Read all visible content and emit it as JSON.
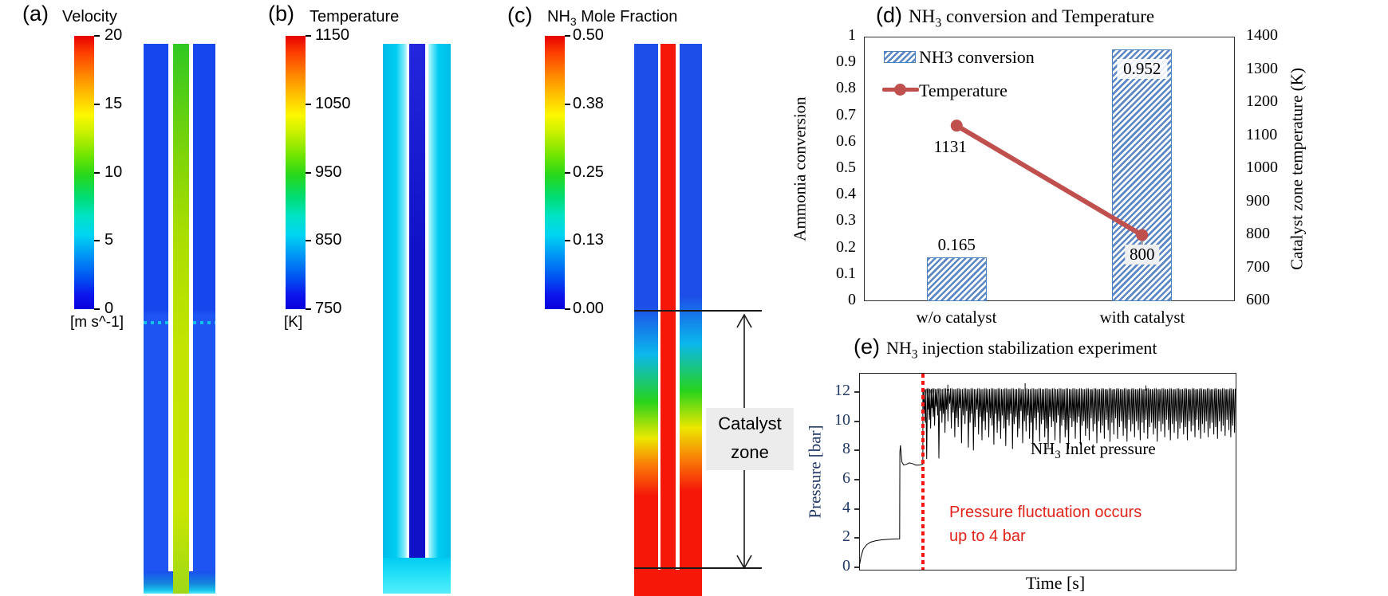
{
  "panels": {
    "a": {
      "label": "(a)",
      "title": "Velocity",
      "unit": "[m s^-1]",
      "colorbar_ticks": [
        "20",
        "15",
        "10",
        "5",
        "0"
      ]
    },
    "b": {
      "label": "(b)",
      "title": "Temperature",
      "unit": "[K]",
      "colorbar_ticks": [
        "1150",
        "1050",
        "950",
        "850",
        "750"
      ]
    },
    "c": {
      "label": "(c)",
      "title_pre": "NH",
      "title_sub": "3",
      "title_rest": " Mole Fraction",
      "colorbar_ticks": [
        "0.50",
        "0.38",
        "0.25",
        "0.13",
        "0.00"
      ],
      "catalyst_line1": "Catalyst",
      "catalyst_line2": "zone"
    },
    "d": {
      "label": "(d)",
      "title_pre": "NH",
      "title_sub": "3",
      "title_rest": " conversion and Temperature",
      "legend_bar": "NH3 conversion",
      "legend_line": "Temperature",
      "left_axis_label": "Ammonia conversion",
      "right_axis_label": "Catalyst zone temperature  (K)",
      "categories": [
        "w/o catalyst",
        "with catalyst"
      ]
    },
    "e": {
      "label": "(e)",
      "title_pre": "NH",
      "title_sub": "3",
      "title_rest": " injection stabilization experiment",
      "ylabel": "Pressure [bar]",
      "xlabel": "Time [s]",
      "series_pre": "NH",
      "series_sub": "3",
      "series_rest": " Inlet pressure",
      "annotation_line1": "Pressure fluctuation occurs",
      "annotation_line2": "up to 4 bar"
    }
  },
  "contours": {
    "a_desc": "velocity contour: blue annulus, green-yellow core jet",
    "b_desc": "temperature contour: cyan annulus, dark blue core",
    "c_desc": "NH3 mole fraction contour: blue-to-red annulus along catalyst zone, red core"
  },
  "chart_data": [
    {
      "panel": "d",
      "type": "bar",
      "title": "NH3 conversion and Temperature",
      "categories": [
        "w/o catalyst",
        "with catalyst"
      ],
      "series": [
        {
          "name": "NH3 conversion",
          "type": "bar",
          "axis": "left",
          "values": [
            0.165,
            0.952
          ]
        },
        {
          "name": "Temperature",
          "type": "line",
          "axis": "right",
          "values": [
            1131,
            800
          ]
        }
      ],
      "bar_labels": [
        "0.165",
        "0.952"
      ],
      "line_labels": [
        "1131",
        "800"
      ],
      "left_axis": {
        "label": "Ammonia conversion",
        "min": 0,
        "max": 1,
        "tick_step": 0.1
      },
      "right_axis": {
        "label": "Catalyst zone temperature  (K)",
        "min": 600,
        "max": 1400,
        "tick_step": 100
      },
      "legend_position": "top-left",
      "colors": {
        "bar": "#5b87c5",
        "bar_border": "#4f81bd",
        "line": "#c0504d"
      }
    },
    {
      "panel": "e",
      "type": "line",
      "title": "NH3 injection stabilization experiment",
      "xlabel": "Time [s]",
      "ylabel": "Pressure [bar]",
      "series_label": "NH3 Inlet pressure",
      "annotation": "Pressure fluctuation occurs up to 4 bar",
      "x_range": [
        0,
        100
      ],
      "ylim": [
        0,
        13
      ],
      "yticks": [
        0,
        2,
        4,
        6,
        8,
        10,
        12
      ],
      "red_dotted_line_x": 16.9,
      "plateau": 12.15,
      "pre_points": [
        [
          0,
          0
        ],
        [
          0.5,
          0.75
        ],
        [
          1.1,
          1.25
        ],
        [
          2,
          1.55
        ],
        [
          3,
          1.72
        ],
        [
          4.4,
          1.82
        ],
        [
          6,
          1.88
        ],
        [
          8,
          1.92
        ],
        [
          9.5,
          1.94
        ],
        [
          10.75,
          1.95
        ],
        [
          10.8,
          7.9
        ],
        [
          10.95,
          8.35
        ],
        [
          11.15,
          7.75
        ],
        [
          11.35,
          7.2
        ],
        [
          11.8,
          7.0
        ],
        [
          12.5,
          7.05
        ],
        [
          13.3,
          7.15
        ],
        [
          14.1,
          7.1
        ],
        [
          15,
          7.0
        ],
        [
          16,
          7.0
        ],
        [
          16.85,
          7.05
        ]
      ],
      "up_spikes": [
        [
          23.5,
          12.5
        ],
        [
          44,
          12.6
        ],
        [
          76,
          12.45
        ]
      ],
      "spikes": [
        [
          17.2,
          10.6
        ],
        [
          17.55,
          9.9
        ],
        [
          17.9,
          7.4
        ],
        [
          18.25,
          10.8
        ],
        [
          18.6,
          10.1
        ],
        [
          18.95,
          9.5
        ],
        [
          19.3,
          10.9
        ],
        [
          19.65,
          10.3
        ],
        [
          20.0,
          9.7
        ],
        [
          20.4,
          11.0
        ],
        [
          20.8,
          10.4
        ],
        [
          21.15,
          7.45
        ],
        [
          21.55,
          10.7
        ],
        [
          21.95,
          9.9
        ],
        [
          22.35,
          10.5
        ],
        [
          22.75,
          9.2
        ],
        [
          23.15,
          10.8
        ],
        [
          23.55,
          10.0
        ],
        [
          24.0,
          11.2
        ],
        [
          24.45,
          9.5
        ],
        [
          24.9,
          10.6
        ],
        [
          25.35,
          8.9
        ],
        [
          25.8,
          10.2
        ],
        [
          26.25,
          9.6
        ],
        [
          26.7,
          10.9
        ],
        [
          27.15,
          8.5
        ],
        [
          27.6,
          10.4
        ],
        [
          28.05,
          9.8
        ],
        [
          28.5,
          10.7
        ],
        [
          28.95,
          8.2
        ],
        [
          29.4,
          9.9
        ],
        [
          29.85,
          10.5
        ],
        [
          30.3,
          8.0
        ],
        [
          30.75,
          9.6
        ],
        [
          31.2,
          10.8
        ],
        [
          31.65,
          9.1
        ],
        [
          32.1,
          10.3
        ],
        [
          32.55,
          8.7
        ],
        [
          33.0,
          10.0
        ],
        [
          33.45,
          9.4
        ],
        [
          33.9,
          10.6
        ],
        [
          34.35,
          8.9
        ],
        [
          34.8,
          10.2
        ],
        [
          35.25,
          9.7
        ],
        [
          35.7,
          8.4
        ],
        [
          36.15,
          10.5
        ],
        [
          36.6,
          9.2
        ],
        [
          37.05,
          10.0
        ],
        [
          37.5,
          8.8
        ],
        [
          37.95,
          10.4
        ],
        [
          38.4,
          9.5
        ],
        [
          38.85,
          8.3
        ],
        [
          39.3,
          10.1
        ],
        [
          39.75,
          9.7
        ],
        [
          40.2,
          10.5
        ],
        [
          40.65,
          8.1
        ],
        [
          41.1,
          9.8
        ],
        [
          41.55,
          10.3
        ],
        [
          42.0,
          8.9
        ],
        [
          42.45,
          9.5
        ],
        [
          42.9,
          10.7
        ],
        [
          43.35,
          8.5
        ],
        [
          43.8,
          10.0
        ],
        [
          44.25,
          9.3
        ],
        [
          44.7,
          10.4
        ],
        [
          45.15,
          8.8
        ],
        [
          45.6,
          9.9
        ],
        [
          46.05,
          7.9
        ],
        [
          46.5,
          10.2
        ],
        [
          46.95,
          9.4
        ],
        [
          47.4,
          10.6
        ],
        [
          47.85,
          8.6
        ],
        [
          48.3,
          9.8
        ],
        [
          48.75,
          10.1
        ],
        [
          49.2,
          8.9
        ],
        [
          49.65,
          9.5
        ],
        [
          50.1,
          8.2
        ],
        [
          50.55,
          10.3
        ],
        [
          51.0,
          9.6
        ],
        [
          51.45,
          10.0
        ],
        [
          51.9,
          8.7
        ],
        [
          52.35,
          9.9
        ],
        [
          52.8,
          10.4
        ],
        [
          53.25,
          8.5
        ],
        [
          53.7,
          9.7
        ],
        [
          54.15,
          10.1
        ],
        [
          54.6,
          8.9
        ],
        [
          55.05,
          9.4
        ],
        [
          55.5,
          8.1
        ],
        [
          55.95,
          10.2
        ],
        [
          56.4,
          9.6
        ],
        [
          56.85,
          10.0
        ],
        [
          57.3,
          8.8
        ],
        [
          57.75,
          9.9
        ],
        [
          58.2,
          10.3
        ],
        [
          58.65,
          8.4
        ],
        [
          59.1,
          9.7
        ],
        [
          59.55,
          10.0
        ],
        [
          60.0,
          9.0
        ],
        [
          60.5,
          9.5
        ],
        [
          61.0,
          8.7
        ],
        [
          61.5,
          10.2
        ],
        [
          62.0,
          9.3
        ],
        [
          62.5,
          9.8
        ],
        [
          63.0,
          8.5
        ],
        [
          63.5,
          10.0
        ],
        [
          64.0,
          9.2
        ],
        [
          64.5,
          9.7
        ],
        [
          65.0,
          8.8
        ],
        [
          65.5,
          10.1
        ],
        [
          66.0,
          9.4
        ],
        [
          66.5,
          8.6
        ],
        [
          67.0,
          9.9
        ],
        [
          67.5,
          9.1
        ],
        [
          68.0,
          10.2
        ],
        [
          68.5,
          8.8
        ],
        [
          69.0,
          9.6
        ],
        [
          69.5,
          10.0
        ],
        [
          70.0,
          9.0
        ],
        [
          70.5,
          9.5
        ],
        [
          71.0,
          8.6
        ],
        [
          71.5,
          10.1
        ],
        [
          72.0,
          9.3
        ],
        [
          72.5,
          9.8
        ],
        [
          73.0,
          8.9
        ],
        [
          73.5,
          10.0
        ],
        [
          74.0,
          9.4
        ],
        [
          74.5,
          8.7
        ],
        [
          75.0,
          9.9
        ],
        [
          75.5,
          9.2
        ],
        [
          76.0,
          10.1
        ],
        [
          76.5,
          8.8
        ],
        [
          77.0,
          9.6
        ],
        [
          77.5,
          9.9
        ],
        [
          78.0,
          9.1
        ],
        [
          78.5,
          9.5
        ],
        [
          79.0,
          8.6
        ],
        [
          79.5,
          10.0
        ],
        [
          80.0,
          9.3
        ],
        [
          80.5,
          9.8
        ],
        [
          81.0,
          8.9
        ],
        [
          81.5,
          10.1
        ],
        [
          82.0,
          9.4
        ],
        [
          82.5,
          8.7
        ],
        [
          83.0,
          9.8
        ],
        [
          83.5,
          9.2
        ],
        [
          84.0,
          10.0
        ],
        [
          84.5,
          8.8
        ],
        [
          85.0,
          9.5
        ],
        [
          85.5,
          9.9
        ],
        [
          86.0,
          9.1
        ],
        [
          86.5,
          9.6
        ],
        [
          87.0,
          8.7
        ],
        [
          87.5,
          10.0
        ],
        [
          88.0,
          9.3
        ],
        [
          88.5,
          9.7
        ],
        [
          89.0,
          8.9
        ],
        [
          89.5,
          10.1
        ],
        [
          90.0,
          9.4
        ],
        [
          90.5,
          8.8
        ],
        [
          91.0,
          9.8
        ],
        [
          91.5,
          9.2
        ],
        [
          92.0,
          10.0
        ],
        [
          92.5,
          8.9
        ],
        [
          93.0,
          9.5
        ],
        [
          93.5,
          9.9
        ],
        [
          94.0,
          9.1
        ],
        [
          94.5,
          9.6
        ],
        [
          95.0,
          8.8
        ],
        [
          95.5,
          10.0
        ],
        [
          96.0,
          9.3
        ],
        [
          96.5,
          9.7
        ],
        [
          97.0,
          9.0
        ],
        [
          97.5,
          10.1
        ],
        [
          98.0,
          9.4
        ],
        [
          98.5,
          8.9
        ],
        [
          99.0,
          9.7
        ],
        [
          99.5,
          9.2
        ]
      ],
      "colors": {
        "signal": "#000000",
        "red_line": "#fb1511",
        "annotation": "#e2231a",
        "tick_color": "#1f3864"
      }
    }
  ]
}
